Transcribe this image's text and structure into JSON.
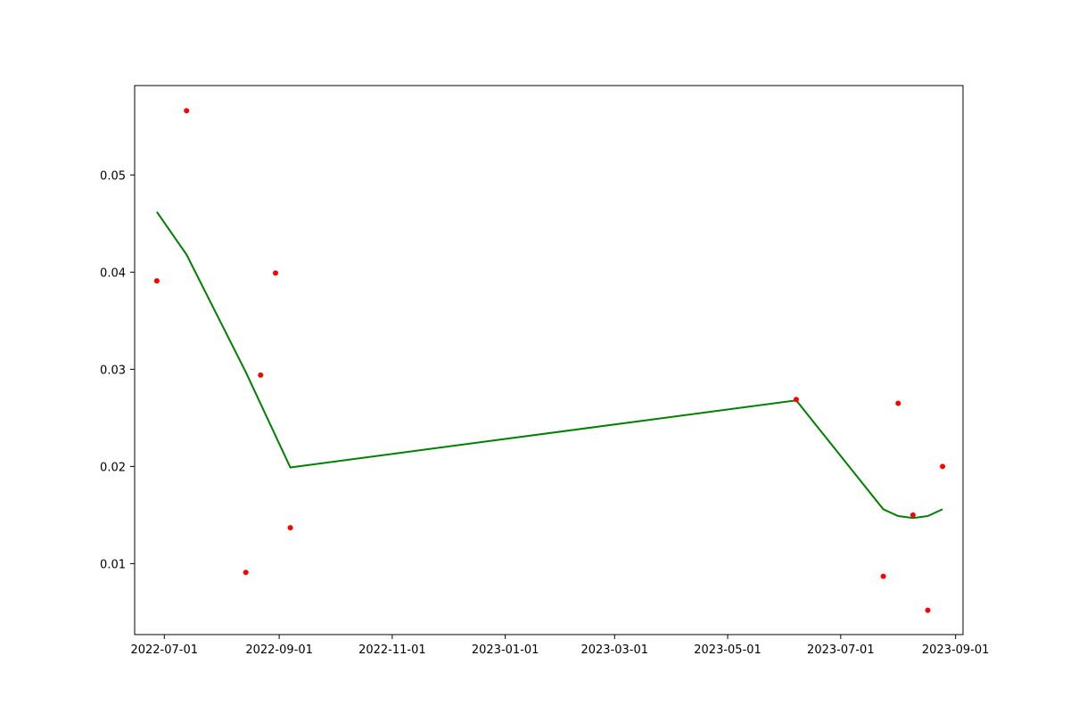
{
  "chart_data": {
    "type": "scatter",
    "title": "",
    "xlabel": "",
    "ylabel": "",
    "x_axis_type": "date",
    "xlim": [
      "2022-06-15",
      "2023-09-05"
    ],
    "ylim": [
      0.0027,
      0.0592
    ],
    "grid": false,
    "legend": null,
    "x_ticks": [
      "2022-07-01",
      "2022-09-01",
      "2022-11-01",
      "2023-01-01",
      "2023-03-01",
      "2023-05-01",
      "2023-07-01",
      "2023-09-01"
    ],
    "y_ticks": [
      0.01,
      0.02,
      0.03,
      0.04,
      0.05
    ],
    "y_tick_labels": [
      "0.01",
      "0.02",
      "0.03",
      "0.04",
      "0.05"
    ],
    "series": [
      {
        "kind": "scatter",
        "color": "#ff0000",
        "x": [
          "2022-06-27",
          "2022-07-13",
          "2022-08-14",
          "2022-08-22",
          "2022-08-30",
          "2022-09-07",
          "2023-06-07",
          "2023-07-24",
          "2023-08-01",
          "2023-08-09",
          "2023-08-17",
          "2023-08-25"
        ],
        "y": [
          0.0391,
          0.0566,
          0.0091,
          0.0294,
          0.0399,
          0.0137,
          0.0269,
          0.0087,
          0.0265,
          0.015,
          0.0052,
          0.02
        ]
      },
      {
        "kind": "line",
        "color": "#008000",
        "x": [
          "2022-06-27",
          "2022-07-13",
          "2022-08-14",
          "2022-09-07",
          "2023-06-07",
          "2023-07-24",
          "2023-08-01",
          "2023-08-09",
          "2023-08-17",
          "2023-08-25"
        ],
        "y": [
          0.0462,
          0.0418,
          0.0297,
          0.0199,
          0.0268,
          0.0156,
          0.0149,
          0.0147,
          0.0149,
          0.0156
        ]
      }
    ]
  }
}
